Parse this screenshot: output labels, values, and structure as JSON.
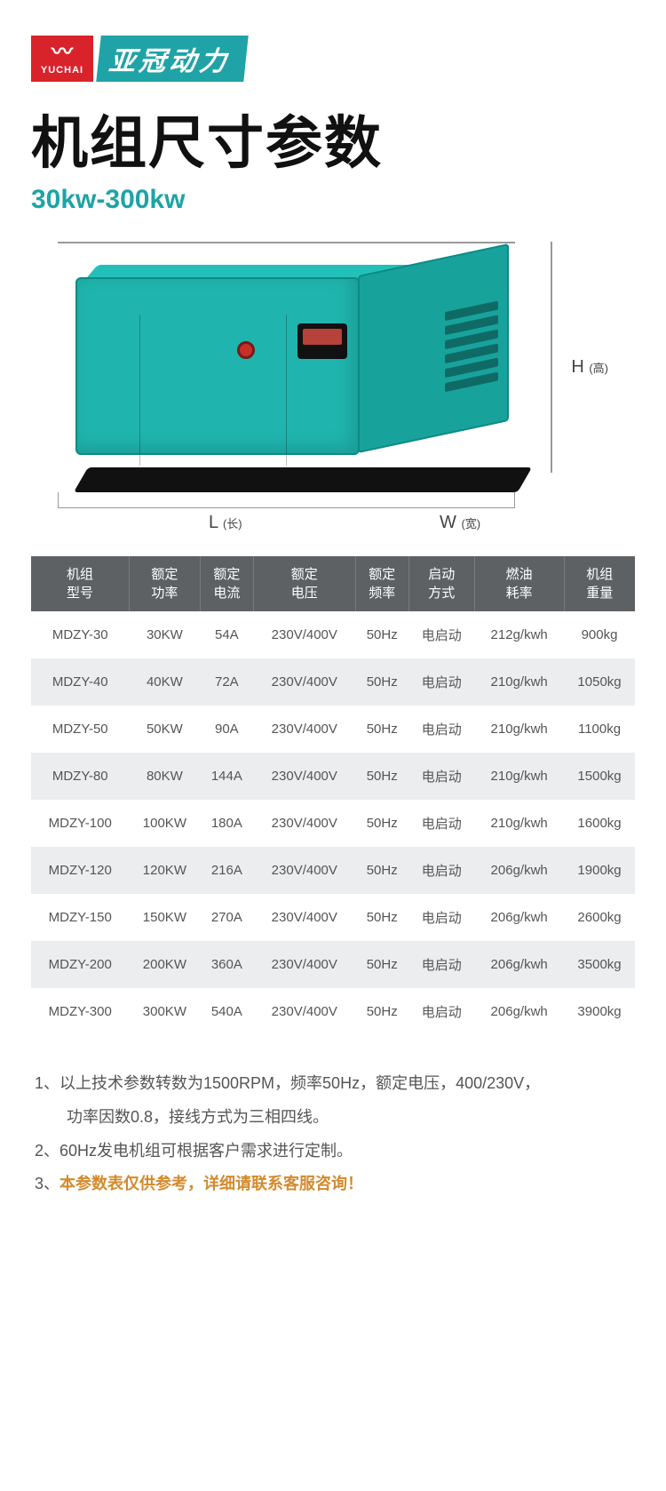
{
  "logo": {
    "red_text": "YUCHAI",
    "cyan_text": "亚冠动力"
  },
  "title": "机组尺寸参数",
  "subtitle": "30kw-300kw",
  "dims": {
    "L_label": "L",
    "L_sub": "(长)",
    "W_label": "W",
    "W_sub": "(宽)",
    "H_label": "H",
    "H_sub": "(高)"
  },
  "table": {
    "headers": [
      "机组\n型号",
      "额定\n功率",
      "额定\n电流",
      "额定\n电压",
      "额定\n频率",
      "启动\n方式",
      "燃油\n耗率",
      "机组\n重量"
    ],
    "rows": [
      [
        "MDZY-30",
        "30KW",
        "54A",
        "230V/400V",
        "50Hz",
        "电启动",
        "212g/kwh",
        "900kg"
      ],
      [
        "MDZY-40",
        "40KW",
        "72A",
        "230V/400V",
        "50Hz",
        "电启动",
        "210g/kwh",
        "1050kg"
      ],
      [
        "MDZY-50",
        "50KW",
        "90A",
        "230V/400V",
        "50Hz",
        "电启动",
        "210g/kwh",
        "1100kg"
      ],
      [
        "MDZY-80",
        "80KW",
        "144A",
        "230V/400V",
        "50Hz",
        "电启动",
        "210g/kwh",
        "1500kg"
      ],
      [
        "MDZY-100",
        "100KW",
        "180A",
        "230V/400V",
        "50Hz",
        "电启动",
        "210g/kwh",
        "1600kg"
      ],
      [
        "MDZY-120",
        "120KW",
        "216A",
        "230V/400V",
        "50Hz",
        "电启动",
        "206g/kwh",
        "1900kg"
      ],
      [
        "MDZY-150",
        "150KW",
        "270A",
        "230V/400V",
        "50Hz",
        "电启动",
        "206g/kwh",
        "2600kg"
      ],
      [
        "MDZY-200",
        "200KW",
        "360A",
        "230V/400V",
        "50Hz",
        "电启动",
        "206g/kwh",
        "3500kg"
      ],
      [
        "MDZY-300",
        "300KW",
        "540A",
        "230V/400V",
        "50Hz",
        "电启动",
        "206g/kwh",
        "3900kg"
      ]
    ]
  },
  "notes": {
    "n1a": "1、以上技术参数转数为1500RPM，频率50Hz，额定电压，400/230V，",
    "n1b": "功率因数0.8，接线方式为三相四线。",
    "n2": "2、60Hz发电机组可根据客户需求进行定制。",
    "n3_prefix": "3、",
    "n3_hl": "本参数表仅供参考，详细请联系客服咨询！"
  },
  "colors": {
    "brand_red": "#d8232a",
    "brand_cyan": "#1fa3a6",
    "header_bg": "#5e6164",
    "row_alt": "#ebedee",
    "highlight": "#d38a2d"
  }
}
